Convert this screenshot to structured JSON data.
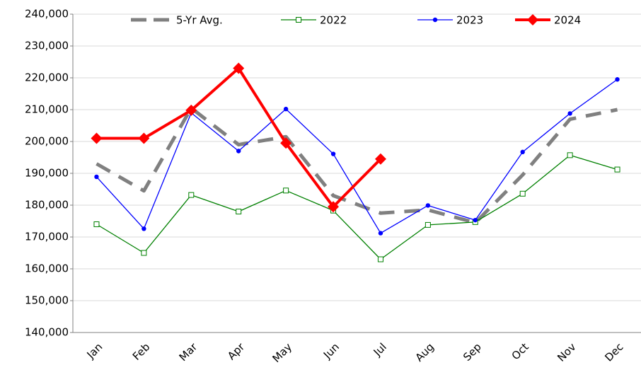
{
  "chart_data": {
    "type": "line",
    "categories": [
      "Jan",
      "Feb",
      "Mar",
      "Apr",
      "May",
      "Jun",
      "Jul",
      "Aug",
      "Sep",
      "Oct",
      "Nov",
      "Dec"
    ],
    "series": [
      {
        "name": "5-Yr Avg.",
        "color": "#808080",
        "style": "dashed",
        "marker": "none",
        "values": [
          193000,
          184500,
          210500,
          199000,
          201500,
          183000,
          177500,
          178500,
          174500,
          189500,
          207000,
          210000
        ]
      },
      {
        "name": "2022",
        "color": "#008000",
        "style": "solid",
        "marker": "square",
        "values": [
          174000,
          165000,
          183200,
          178000,
          184600,
          178300,
          163000,
          173800,
          174700,
          183600,
          195700,
          191200
        ]
      },
      {
        "name": "2023",
        "color": "#0000ff",
        "style": "solid",
        "marker": "circle",
        "values": [
          188900,
          172600,
          209000,
          197000,
          210200,
          196100,
          171200,
          179900,
          175300,
          196700,
          208800,
          219500
        ]
      },
      {
        "name": "2024",
        "color": "#ff0000",
        "style": "bold",
        "marker": "diamond",
        "values": [
          201000,
          201000,
          209800,
          223000,
          199500,
          179500,
          194500,
          null,
          null,
          null,
          null,
          null
        ]
      }
    ],
    "ylim": [
      140000,
      240000
    ],
    "yticks": [
      {
        "value": 140000,
        "label": "140,000"
      },
      {
        "value": 150000,
        "label": "150,000"
      },
      {
        "value": 160000,
        "label": "160,000"
      },
      {
        "value": 170000,
        "label": "170,000"
      },
      {
        "value": 180000,
        "label": "180,000"
      },
      {
        "value": 190000,
        "label": "190,000"
      },
      {
        "value": 200000,
        "label": "200,000"
      },
      {
        "value": 210000,
        "label": "210,000"
      },
      {
        "value": 220000,
        "label": "220,000"
      },
      {
        "value": 230000,
        "label": "230,000"
      },
      {
        "value": 240000,
        "label": "240,000"
      }
    ],
    "grid": true,
    "legend": "top"
  }
}
